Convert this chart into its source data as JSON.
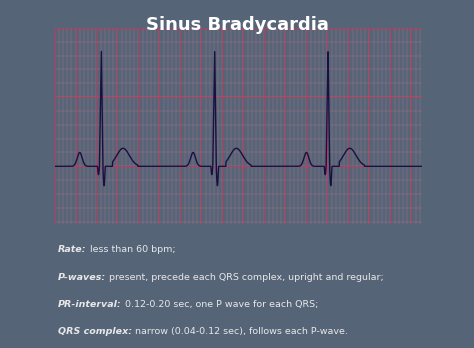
{
  "title": "Sinus Bradycardia",
  "title_color": "#ffffff",
  "title_fontsize": 13,
  "bg_color": "#566478",
  "ecg_bg": "#f5b8c0",
  "ecg_line_color": "#1a1040",
  "grid_major_color": "#cc3355",
  "grid_minor_color": "#e08090",
  "ecg_border_color": "#ffffff",
  "annotation_color": "#e8e8e8",
  "annotation_fontsize": 6.8,
  "beat_period": 1.08,
  "beat_starts": [
    0.15,
    1.23,
    2.31
  ],
  "total_time": 3.5,
  "annotation_lines": [
    [
      "Rate:",
      " less than 60 bpm;"
    ],
    [
      "P-waves:",
      " present, precede each QRS complex, upright and regular;"
    ],
    [
      "PR-interval:",
      " 0.12-0.20 sec, one P wave for each QRS;"
    ],
    [
      "QRS complex:",
      " narrow (0.04-0.12 sec), follows each P-wave."
    ]
  ]
}
